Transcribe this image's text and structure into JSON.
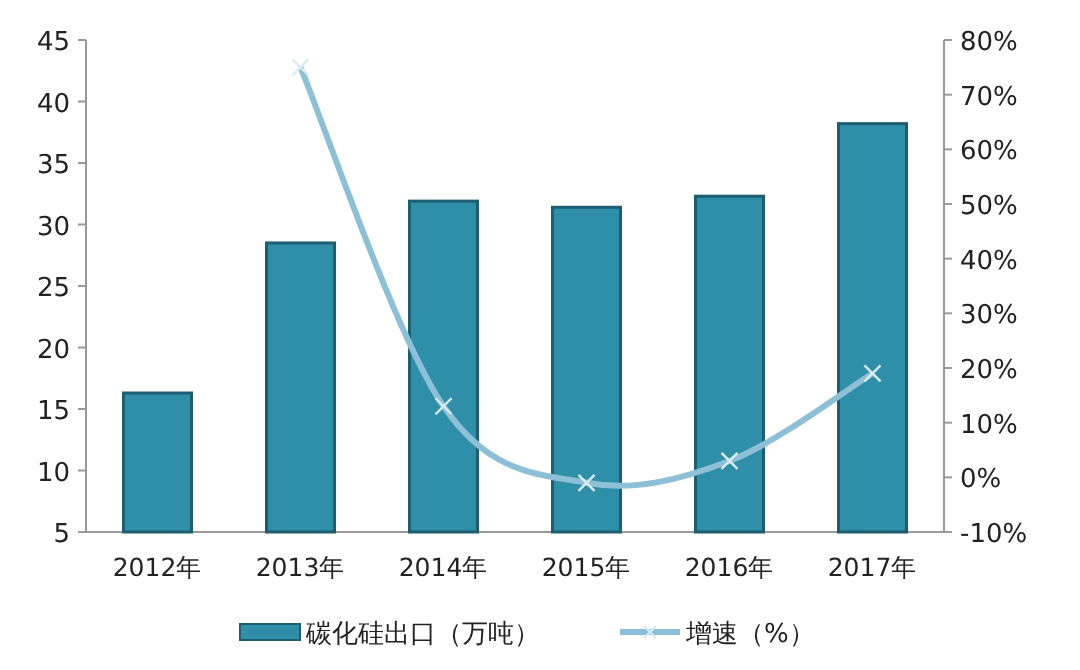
{
  "chart_data": {
    "type": "bar",
    "categories": [
      "2012年",
      "2013年",
      "2014年",
      "2015年",
      "2016年",
      "2017年"
    ],
    "series": [
      {
        "name": "碳化硅出口（万吨）",
        "color": "#2f8ea8",
        "values": [
          16.3,
          28.5,
          31.9,
          31.4,
          32.3,
          38.2
        ]
      },
      {
        "name": "增速（%）",
        "type": "line",
        "axis": "y2",
        "marker": "cross",
        "color": "#8dc0d6",
        "values": [
          null,
          75,
          13,
          -1,
          3,
          19
        ]
      }
    ],
    "ylim": [
      5,
      45
    ],
    "yticks": [
      5,
      10,
      15,
      20,
      25,
      30,
      35,
      40,
      45
    ],
    "y2lim": [
      -10,
      80
    ],
    "y2ticks": [
      {
        "value": -10,
        "label": "-10%"
      },
      {
        "value": 0,
        "label": "0%"
      },
      {
        "value": 10,
        "label": "10%"
      },
      {
        "value": 20,
        "label": "20%"
      },
      {
        "value": 30,
        "label": "30%"
      },
      {
        "value": 40,
        "label": "40%"
      },
      {
        "value": 50,
        "label": "50%"
      },
      {
        "value": 60,
        "label": "60%"
      },
      {
        "value": 70,
        "label": "70%"
      },
      {
        "value": 80,
        "label": "80%"
      }
    ],
    "legend": "bottom"
  }
}
